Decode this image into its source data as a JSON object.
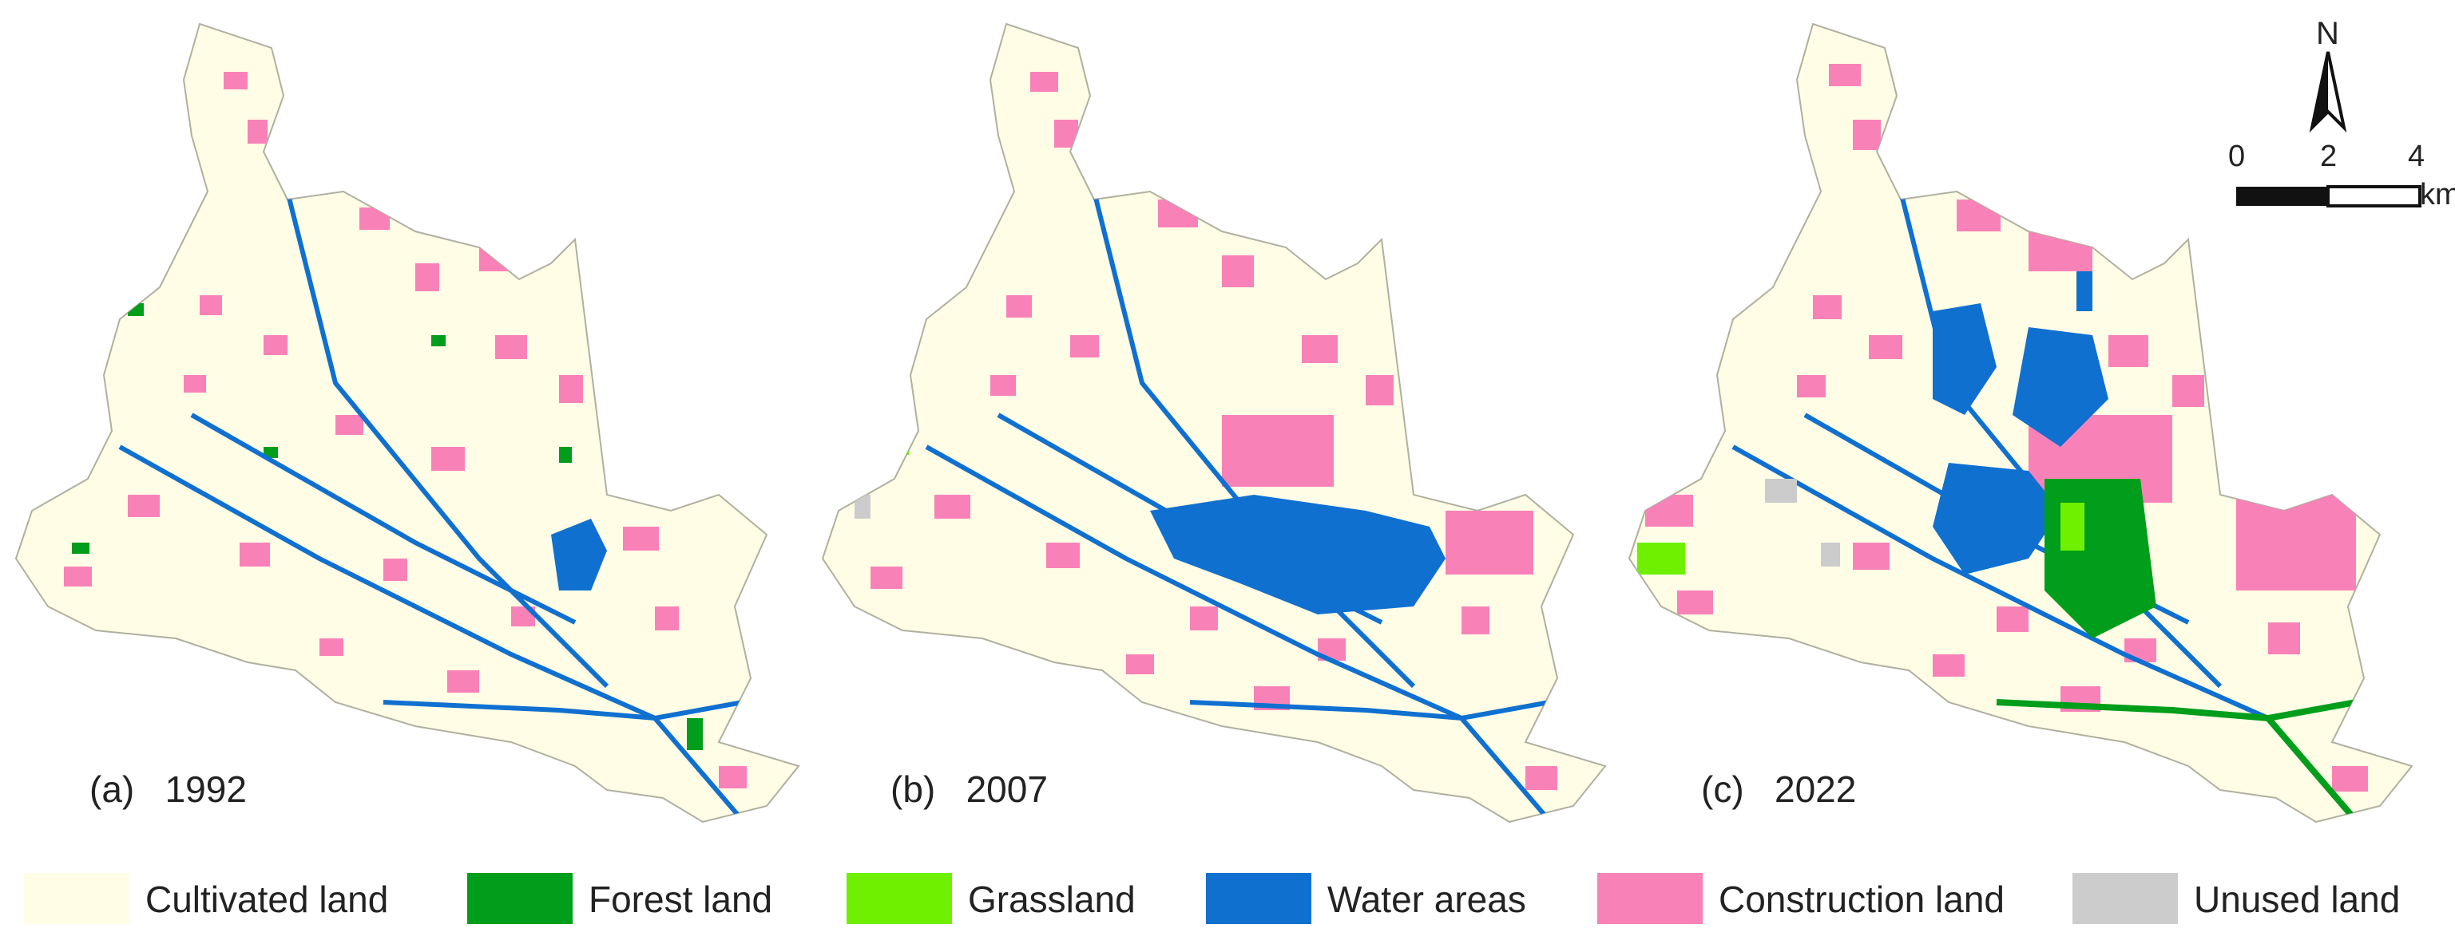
{
  "panels": [
    {
      "label": "(a)",
      "year": "1992"
    },
    {
      "label": "(b)",
      "year": "2007"
    },
    {
      "label": "(c)",
      "year": "2022"
    }
  ],
  "legend": [
    {
      "label": "Cultivated land",
      "color": "#fffde6"
    },
    {
      "label": "Forest land",
      "color": "#009e1a"
    },
    {
      "label": "Grassland",
      "color": "#6ef000"
    },
    {
      "label": "Water areas",
      "color": "#1070d0"
    },
    {
      "label": "Construction land",
      "color": "#f882b8"
    },
    {
      "label": "Unused land",
      "color": "#cccccc"
    }
  ],
  "north_arrow": {
    "label": "N"
  },
  "scale_bar": {
    "ticks": [
      "0",
      "2",
      "4"
    ],
    "unit": "km"
  },
  "map_style": {
    "outline_color": "#b0b0a0",
    "background": "#ffffff"
  }
}
